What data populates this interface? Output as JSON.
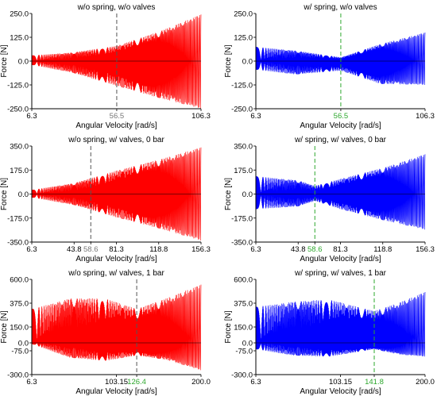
{
  "chart_data": [
    {
      "type": "line",
      "title": "w/o spring, w/o valves",
      "xlabel": "Angular Velocity [rad/s]",
      "ylabel": "Force [N]",
      "xlim": [
        6.3,
        106.3
      ],
      "ylim": [
        -250.0,
        250.0
      ],
      "x_ticks": [
        {
          "value": 6.3,
          "label": "6.3"
        },
        {
          "value": 56.5,
          "label": "56.5"
        },
        {
          "value": 106.3,
          "label": "106.3"
        }
      ],
      "y_ticks": [
        {
          "value": 250.0,
          "label": "250.0"
        },
        {
          "value": 125.0,
          "label": "125.0"
        },
        {
          "value": 0.0,
          "label": "0.0"
        },
        {
          "value": -125.0,
          "label": "-125.0"
        },
        {
          "value": -250.0,
          "label": "-250.0"
        }
      ],
      "marker": {
        "x": 56.5,
        "label": "56.5"
      },
      "series": [
        {
          "color": "#ff0000",
          "envelope": [
            {
              "x": 6.3,
              "max": 30,
              "min": -20
            },
            {
              "x": 30,
              "max": 45,
              "min": -60
            },
            {
              "x": 56.5,
              "max": 80,
              "min": -130
            },
            {
              "x": 80,
              "max": 150,
              "min": -190
            },
            {
              "x": 106.3,
              "max": 245,
              "min": -250
            }
          ]
        }
      ]
    },
    {
      "type": "line",
      "title": "w/ spring, w/o valves",
      "xlabel": "Angular Velocity [rad/s]",
      "ylabel": "Force [N]",
      "xlim": [
        6.3,
        106.3
      ],
      "ylim": [
        -250.0,
        250.0
      ],
      "x_ticks": [
        {
          "value": 6.3,
          "label": "6.3"
        },
        {
          "value": 56.5,
          "label": "56.5"
        },
        {
          "value": 106.3,
          "label": "106.3"
        }
      ],
      "y_ticks": [
        {
          "value": 250.0,
          "label": "250.0"
        },
        {
          "value": 125.0,
          "label": "125.0"
        },
        {
          "value": 0.0,
          "label": "0.0"
        },
        {
          "value": -125.0,
          "label": "-125.0"
        },
        {
          "value": -250.0,
          "label": "-250.0"
        }
      ],
      "marker": {
        "x": 56.5,
        "label": "56.5"
      },
      "series": [
        {
          "color": "#0000ff",
          "envelope": [
            {
              "x": 6.3,
              "max": 75,
              "min": -45
            },
            {
              "x": 30,
              "max": 55,
              "min": -70
            },
            {
              "x": 56.5,
              "max": 20,
              "min": -50
            },
            {
              "x": 80,
              "max": 90,
              "min": -120
            },
            {
              "x": 106.3,
              "max": 150,
              "min": -125
            }
          ]
        }
      ]
    },
    {
      "type": "line",
      "title": "w/o spring, w/ valves, 0 bar",
      "xlabel": "Angular Velocity [rad/s]",
      "ylabel": "Force [N]",
      "xlim": [
        6.3,
        156.3
      ],
      "ylim": [
        -350.0,
        350.0
      ],
      "x_ticks": [
        {
          "value": 6.3,
          "label": "6.3"
        },
        {
          "value": 43.8,
          "label": "43.8"
        },
        {
          "value": 58.6,
          "label": "58.6"
        },
        {
          "value": 81.3,
          "label": "81.3"
        },
        {
          "value": 118.8,
          "label": "118.8"
        },
        {
          "value": 156.3,
          "label": "156.3"
        }
      ],
      "y_ticks": [
        {
          "value": 350.0,
          "label": "350.0"
        },
        {
          "value": 175.0,
          "label": "175.0"
        },
        {
          "value": 0.0,
          "label": "0.0"
        },
        {
          "value": -175.0,
          "label": "-175.0"
        },
        {
          "value": -350.0,
          "label": "-350.0"
        }
      ],
      "marker": {
        "x": 58.6,
        "label": "58.6"
      },
      "series": [
        {
          "color": "#ff0000",
          "envelope": [
            {
              "x": 6.3,
              "max": 30,
              "min": -25
            },
            {
              "x": 43.8,
              "max": 80,
              "min": -80
            },
            {
              "x": 81.3,
              "max": 170,
              "min": -170
            },
            {
              "x": 118.8,
              "max": 250,
              "min": -250
            },
            {
              "x": 156.3,
              "max": 340,
              "min": -340
            }
          ]
        }
      ]
    },
    {
      "type": "line",
      "title": "w/ spring, w/ valves, 0 bar",
      "xlabel": "Angular Velocity [rad/s]",
      "ylabel": "Force [N]",
      "xlim": [
        6.3,
        156.3
      ],
      "ylim": [
        -350.0,
        350.0
      ],
      "x_ticks": [
        {
          "value": 6.3,
          "label": "6.3"
        },
        {
          "value": 43.8,
          "label": "43.8"
        },
        {
          "value": 58.6,
          "label": "58.6"
        },
        {
          "value": 81.3,
          "label": "81.3"
        },
        {
          "value": 118.8,
          "label": "118.8"
        },
        {
          "value": 156.3,
          "label": "156.3"
        }
      ],
      "y_ticks": [
        {
          "value": 350.0,
          "label": "350.0"
        },
        {
          "value": 175.0,
          "label": "175.0"
        },
        {
          "value": 0.0,
          "label": "0.0"
        },
        {
          "value": -175.0,
          "label": "-175.0"
        },
        {
          "value": -350.0,
          "label": "-350.0"
        }
      ],
      "marker": {
        "x": 58.6,
        "label": "58.6"
      },
      "series": [
        {
          "color": "#0000ff",
          "envelope": [
            {
              "x": 6.3,
              "max": 130,
              "min": -110
            },
            {
              "x": 43.8,
              "max": 100,
              "min": -90
            },
            {
              "x": 58.6,
              "max": 60,
              "min": -50
            },
            {
              "x": 81.3,
              "max": 110,
              "min": -110
            },
            {
              "x": 118.8,
              "max": 190,
              "min": -190
            },
            {
              "x": 156.3,
              "max": 290,
              "min": -260
            }
          ]
        }
      ]
    },
    {
      "type": "line",
      "title": "w/o spring, w/ valves, 1 bar",
      "xlabel": "Angular Velocity [rad/s]",
      "ylabel": "Force [N]",
      "xlim": [
        6.3,
        200.0
      ],
      "ylim": [
        -300.0,
        600.0
      ],
      "x_ticks": [
        {
          "value": 6.3,
          "label": "6.3"
        },
        {
          "value": 103.15,
          "label": "103.15"
        },
        {
          "value": 126.4,
          "label": "126.4"
        },
        {
          "value": 200.0,
          "label": "200.0"
        }
      ],
      "y_ticks": [
        {
          "value": 600.0,
          "label": "600.0"
        },
        {
          "value": 375.0,
          "label": "375.0"
        },
        {
          "value": 150.0,
          "label": "150.0"
        },
        {
          "value": 0.0,
          "label": "0.0"
        },
        {
          "value": -75.0,
          "label": "-75.0"
        },
        {
          "value": -300.0,
          "label": "-300.0"
        }
      ],
      "marker": {
        "x": 126.4,
        "label": "126.4"
      },
      "series": [
        {
          "color": "#ff0000",
          "envelope": [
            {
              "x": 6.3,
              "max": 320,
              "min": -10
            },
            {
              "x": 50,
              "max": 420,
              "min": -140
            },
            {
              "x": 90,
              "max": 420,
              "min": -170
            },
            {
              "x": 126.4,
              "max": 320,
              "min": -120
            },
            {
              "x": 160,
              "max": 420,
              "min": -160
            },
            {
              "x": 200,
              "max": 550,
              "min": -260
            }
          ]
        }
      ]
    },
    {
      "type": "line",
      "title": "w/ spring, w/ valves, 1 bar",
      "xlabel": "Angular Velocity [rad/s]",
      "ylabel": "Force [N]",
      "xlim": [
        6.3,
        200.0
      ],
      "ylim": [
        -300.0,
        600.0
      ],
      "x_ticks": [
        {
          "value": 6.3,
          "label": "6.3"
        },
        {
          "value": 103.15,
          "label": "103.15"
        },
        {
          "value": 141.8,
          "label": "141.8"
        },
        {
          "value": 200.0,
          "label": "200.0"
        }
      ],
      "y_ticks": [
        {
          "value": 600.0,
          "label": "600.0"
        },
        {
          "value": 375.0,
          "label": "375.0"
        },
        {
          "value": 150.0,
          "label": "150.0"
        },
        {
          "value": 0.0,
          "label": "0.0"
        },
        {
          "value": -75.0,
          "label": "-75.0"
        },
        {
          "value": -300.0,
          "label": "-300.0"
        }
      ],
      "marker": {
        "x": 141.8,
        "label": "141.8"
      },
      "series": [
        {
          "color": "#0000ff",
          "envelope": [
            {
              "x": 6.3,
              "max": 340,
              "min": -60
            },
            {
              "x": 50,
              "max": 390,
              "min": -120
            },
            {
              "x": 90,
              "max": 410,
              "min": -130
            },
            {
              "x": 141.8,
              "max": 300,
              "min": -60
            },
            {
              "x": 170,
              "max": 380,
              "min": -110
            },
            {
              "x": 200,
              "max": 480,
              "min": -130
            }
          ]
        }
      ]
    }
  ],
  "colors": {
    "axis": "#000000",
    "marker_left": "#555555",
    "marker_right": "#2ea82e",
    "highlight_label": "#2ea82e"
  }
}
